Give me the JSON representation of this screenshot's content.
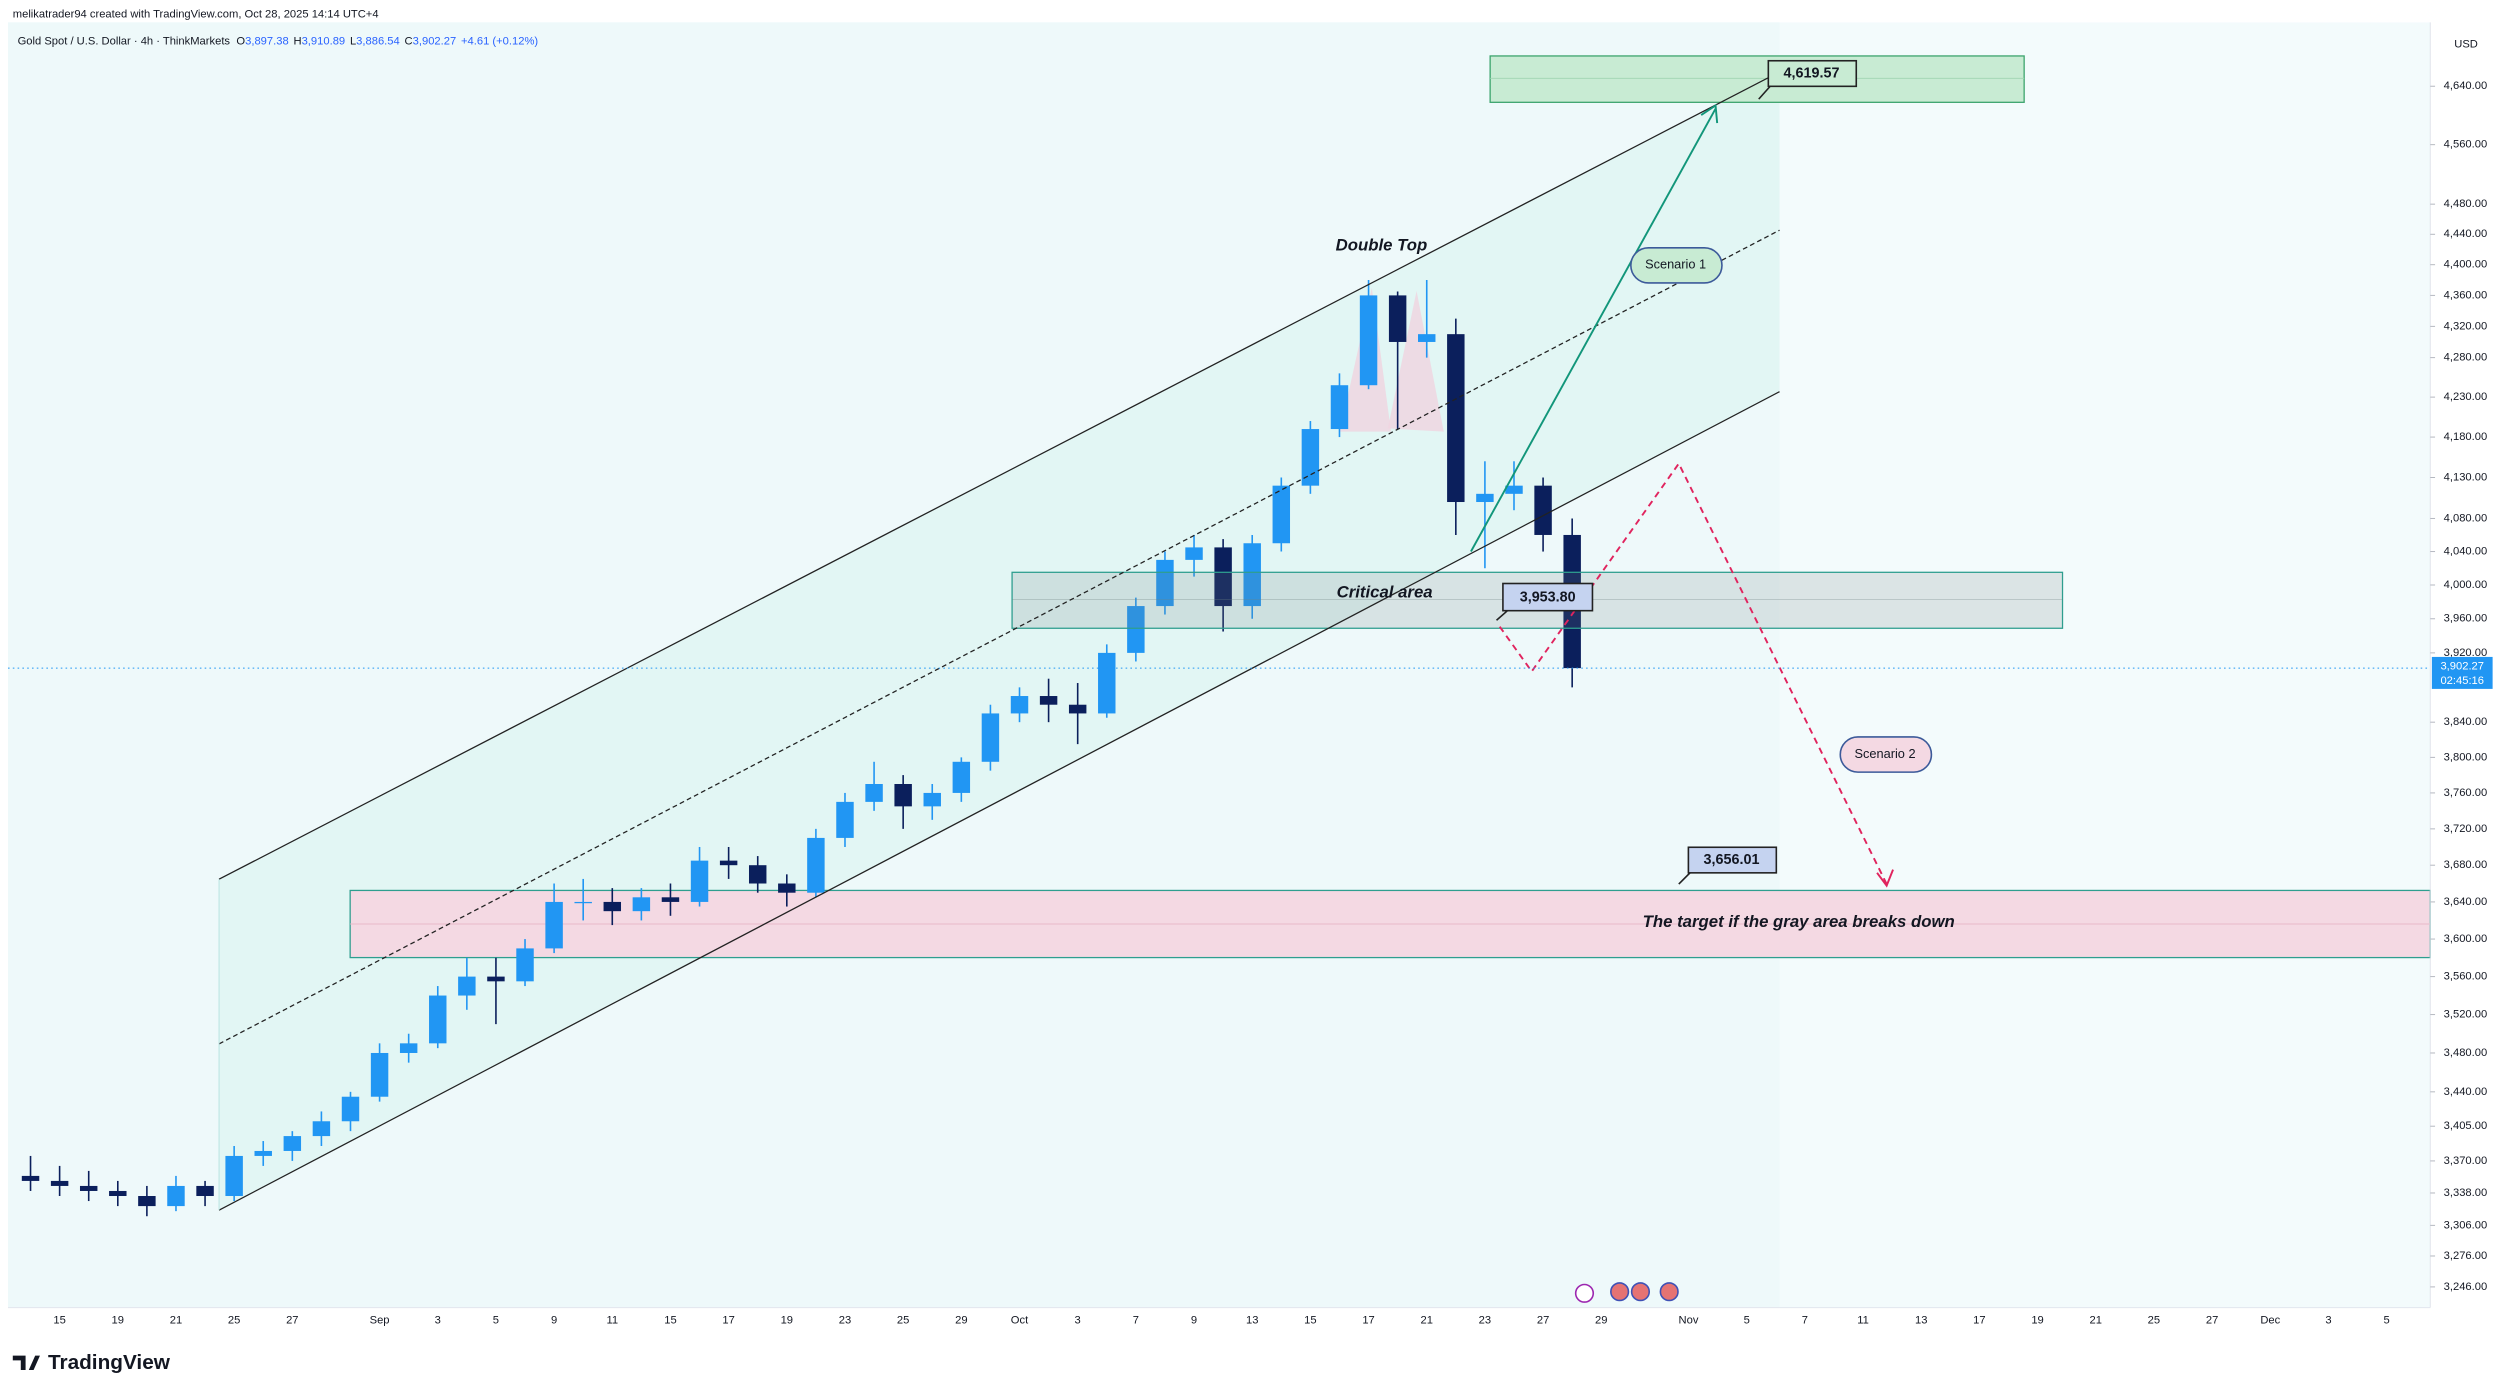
{
  "header": {
    "created": "melikatrader94 created with TradingView.com, Oct 28, 2025 14:14 UTC+4",
    "symbol": "Gold Spot / U.S. Dollar · 4h · ThinkMarkets",
    "ohlc": [
      "O",
      "3,897.38",
      "H",
      "3,910.89",
      "L",
      "3,886.54",
      "C",
      "3,902.27",
      "+4.61 (+0.12%)"
    ]
  },
  "logo": "TradingView",
  "chart_data": {
    "type": "candlestick",
    "currency": "USD",
    "log_scale": true,
    "grid": false,
    "up_color": "#2196f3",
    "down_color": "#0b1f5c",
    "categories": [
      null,
      "15",
      null,
      "19",
      null,
      "21",
      null,
      "25",
      null,
      "27",
      null,
      null,
      "Sep",
      null,
      "3",
      null,
      "5",
      null,
      "9",
      null,
      "11",
      null,
      "15",
      null,
      "17",
      null,
      "19",
      null,
      "23",
      null,
      "25",
      null,
      "29",
      null,
      "Oct",
      null,
      "3",
      null,
      "7",
      null,
      "9",
      null,
      "13",
      null,
      "15",
      null,
      "17",
      null,
      "21",
      null,
      "23",
      null,
      "27",
      null,
      "29",
      null,
      null,
      "Nov",
      null,
      "5",
      null,
      "7",
      null,
      "11",
      null,
      "13",
      null,
      "17",
      null,
      "19",
      null,
      "21",
      null,
      "25",
      null,
      "27",
      null,
      "Dec",
      null,
      "3",
      null,
      "5",
      null
    ],
    "open": [
      3355,
      3350,
      3345,
      3340,
      3335,
      3325,
      3345,
      3335,
      3375,
      3380,
      3395,
      3410,
      3435,
      3480,
      3490,
      3540,
      3560,
      3555,
      3590,
      3640,
      3640,
      3630,
      3645,
      3640,
      3685,
      3680,
      3660,
      3650,
      3710,
      3750,
      3770,
      3745,
      3760,
      3795,
      3850,
      3870,
      3860,
      3850,
      3920,
      3975,
      4030,
      4045,
      3975,
      4050,
      4120,
      4190,
      4245,
      4360,
      4300,
      4310,
      4100,
      4110,
      4120,
      4060,
      null,
      null,
      null,
      null,
      null,
      null,
      null,
      null,
      null,
      null,
      null,
      null,
      null,
      null,
      null,
      null,
      null,
      null,
      null,
      null,
      null,
      null,
      null,
      null,
      null,
      null,
      null,
      null,
      null
    ],
    "high": [
      3375,
      3365,
      3360,
      3350,
      3345,
      3355,
      3350,
      3385,
      3390,
      3400,
      3420,
      3440,
      3490,
      3500,
      3550,
      3580,
      3580,
      3600,
      3660,
      3665,
      3655,
      3655,
      3660,
      3700,
      3700,
      3690,
      3670,
      3720,
      3760,
      3795,
      3780,
      3770,
      3800,
      3860,
      3880,
      3890,
      3885,
      3930,
      3985,
      4040,
      4060,
      4055,
      4060,
      4130,
      4200,
      4260,
      4380,
      4365,
      4380,
      4330,
      4150,
      4150,
      4130,
      4080,
      null,
      null,
      null,
      null,
      null,
      null,
      null,
      null,
      null,
      null,
      null,
      null,
      null,
      null,
      null,
      null,
      null,
      null,
      null,
      null,
      null,
      null,
      null,
      null,
      null,
      null,
      null,
      null,
      null
    ],
    "low": [
      3340,
      3335,
      3330,
      3325,
      3315,
      3320,
      3325,
      3330,
      3365,
      3370,
      3385,
      3400,
      3430,
      3470,
      3485,
      3525,
      3510,
      3550,
      3585,
      3620,
      3615,
      3620,
      3625,
      3635,
      3665,
      3650,
      3635,
      3645,
      3700,
      3740,
      3720,
      3730,
      3750,
      3785,
      3840,
      3840,
      3815,
      3845,
      3910,
      3965,
      4010,
      3945,
      3960,
      4040,
      4110,
      4180,
      4240,
      4190,
      4280,
      4060,
      4020,
      4090,
      4040,
      3880,
      null,
      null,
      null,
      null,
      null,
      null,
      null,
      null,
      null,
      null,
      null,
      null,
      null,
      null,
      null,
      null,
      null,
      null,
      null,
      null,
      null,
      null,
      null,
      null,
      null,
      null,
      null,
      null,
      null
    ],
    "close": [
      3350,
      3345,
      3340,
      3335,
      3325,
      3345,
      3335,
      3375,
      3380,
      3395,
      3410,
      3435,
      3480,
      3490,
      3540,
      3560,
      3555,
      3590,
      3640,
      3640,
      3630,
      3645,
      3640,
      3685,
      3680,
      3660,
      3650,
      3710,
      3750,
      3770,
      3745,
      3760,
      3795,
      3850,
      3870,
      3860,
      3850,
      3920,
      3975,
      4030,
      4045,
      3975,
      4050,
      4120,
      4190,
      4245,
      4360,
      4300,
      4310,
      4100,
      4110,
      4120,
      4060,
      3902.27,
      null,
      null,
      null,
      null,
      null,
      null,
      null,
      null,
      null,
      null,
      null,
      null,
      null,
      null,
      null,
      null,
      null,
      null,
      null,
      null,
      null,
      null,
      null,
      null,
      null,
      null,
      null,
      null,
      null
    ],
    "ylim": [
      3226,
      4729
    ],
    "yticks": [
      {
        "value": 4640,
        "label": "4,640.00"
      },
      {
        "value": 4560,
        "label": "4,560.00"
      },
      {
        "value": 4480,
        "label": "4,480.00"
      },
      {
        "value": 4440,
        "label": "4,440.00"
      },
      {
        "value": 4400,
        "label": "4,400.00"
      },
      {
        "value": 4360,
        "label": "4,360.00"
      },
      {
        "value": 4320,
        "label": "4,320.00"
      },
      {
        "value": 4280,
        "label": "4,280.00"
      },
      {
        "value": 4230,
        "label": "4,230.00"
      },
      {
        "value": 4180,
        "label": "4,180.00"
      },
      {
        "value": 4130,
        "label": "4,130.00"
      },
      {
        "value": 4080,
        "label": "4,080.00"
      },
      {
        "value": 4040,
        "label": "4,040.00"
      },
      {
        "value": 4000,
        "label": "4,000.00"
      },
      {
        "value": 3960,
        "label": "3,960.00"
      },
      {
        "value": 3920,
        "label": "3,920.00"
      },
      {
        "value": 3840,
        "label": "3,840.00"
      },
      {
        "value": 3800,
        "label": "3,800.00"
      },
      {
        "value": 3760,
        "label": "3,760.00"
      },
      {
        "value": 3720,
        "label": "3,720.00"
      },
      {
        "value": 3680,
        "label": "3,680.00"
      },
      {
        "value": 3640,
        "label": "3,640.00"
      },
      {
        "value": 3600,
        "label": "3,600.00"
      },
      {
        "value": 3560,
        "label": "3,560.00"
      },
      {
        "value": 3520,
        "label": "3,520.00"
      },
      {
        "value": 3480,
        "label": "3,480.00"
      },
      {
        "value": 3440,
        "label": "3,440.00"
      },
      {
        "value": 3405,
        "label": "3,405.00"
      },
      {
        "value": 3370,
        "label": "3,370.00"
      },
      {
        "value": 3338,
        "label": "3,338.00"
      },
      {
        "value": 3306,
        "label": "3,306.00"
      },
      {
        "value": 3276,
        "label": "3,276.00"
      },
      {
        "value": 3246,
        "label": "3,246.00"
      }
    ],
    "current_price": {
      "value": 3902.27,
      "label": "3,902.27"
    },
    "countdown": "02:45:16",
    "annotations": {
      "double_top": "Double Top",
      "scenario_1": "Scenario 1",
      "scenario_2": "Scenario 2",
      "critical_area": "Critical area",
      "target_note": "The target if the gray area breaks down"
    },
    "price_labels": [
      {
        "value": 4619.57,
        "label": "4,619.57"
      },
      {
        "value": 3953.8,
        "label": "3,953.80"
      },
      {
        "value": 3656.01,
        "label": "3,656.01"
      }
    ]
  }
}
